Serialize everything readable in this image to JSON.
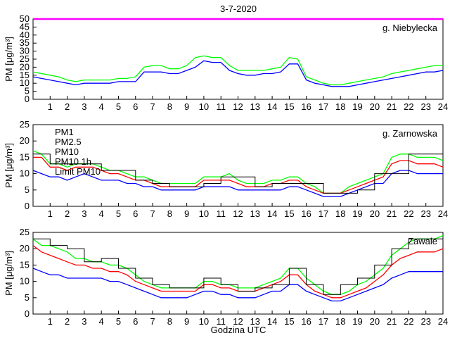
{
  "chart_data": {
    "title": "3-7-2020",
    "xlabel": "Godzina UTC",
    "ylabel": "PM [μg/m³]",
    "xlim": [
      0,
      24
    ],
    "xticks": [
      1,
      2,
      3,
      4,
      5,
      6,
      7,
      8,
      9,
      10,
      11,
      12,
      13,
      14,
      15,
      16,
      17,
      18,
      19,
      20,
      21,
      22,
      23,
      24
    ],
    "legend": [
      {
        "label": "PM1",
        "color": "#0000ff"
      },
      {
        "label": "PM2.5",
        "color": "#ff0000"
      },
      {
        "label": "PM10",
        "color": "#00ff00"
      },
      {
        "label": "PM10 1h",
        "color": "#000000"
      },
      {
        "label": "Limit PM10",
        "color": "#ff00ff"
      }
    ],
    "panels": [
      {
        "station": "g. Niebylecka",
        "type": "line",
        "ylim": [
          0,
          50
        ],
        "yticks": [
          0,
          5,
          10,
          15,
          20,
          25,
          30,
          35,
          40,
          45,
          50
        ],
        "limit_pm10": 50,
        "hours": [
          0,
          0.5,
          1,
          1.5,
          2,
          2.5,
          3,
          3.5,
          4,
          4.5,
          5,
          5.5,
          6,
          6.5,
          7,
          7.5,
          8,
          8.5,
          9,
          9.5,
          10,
          10.5,
          11,
          11.5,
          12,
          12.5,
          13,
          13.5,
          14,
          14.5,
          15,
          15.5,
          16,
          16.5,
          17,
          17.5,
          18,
          18.5,
          19,
          19.5,
          20,
          20.5,
          21,
          21.5,
          22,
          22.5,
          23,
          23.5,
          24
        ],
        "series": [
          {
            "name": "PM1",
            "values": [
              14,
              13,
              12,
              11,
              10,
              9,
              10,
              10,
              10,
              10,
              11,
              11,
              11,
              17,
              17,
              17,
              16,
              16,
              18,
              20,
              24,
              23,
              23,
              18,
              16,
              15,
              15,
              16,
              16,
              17,
              22,
              22,
              12,
              10,
              9,
              8,
              8,
              8,
              9,
              10,
              11,
              12,
              13,
              14,
              15,
              16,
              17,
              17,
              18
            ]
          },
          {
            "name": "PM10",
            "values": [
              17,
              16,
              15,
              14,
              12,
              11,
              12,
              12,
              12,
              12,
              13,
              13,
              14,
              20,
              21,
              21,
              19,
              19,
              21,
              26,
              27,
              26,
              26,
              21,
              18,
              18,
              18,
              18,
              19,
              20,
              26,
              25,
              14,
              12,
              10,
              9,
              9,
              10,
              11,
              12,
              13,
              14,
              16,
              17,
              18,
              19,
              20,
              21,
              21
            ]
          }
        ]
      },
      {
        "station": "g. Zarnowska",
        "type": "line",
        "ylim": [
          0,
          25
        ],
        "yticks": [
          0,
          5,
          10,
          15,
          20,
          25
        ],
        "hours": [
          0,
          0.5,
          1,
          1.5,
          2,
          2.5,
          3,
          3.5,
          4,
          4.5,
          5,
          5.5,
          6,
          6.5,
          7,
          7.5,
          8,
          8.5,
          9,
          9.5,
          10,
          10.5,
          11,
          11.5,
          12,
          12.5,
          13,
          13.5,
          14,
          14.5,
          15,
          15.5,
          16,
          16.5,
          17,
          17.5,
          18,
          18.5,
          19,
          19.5,
          20,
          20.5,
          21,
          21.5,
          22,
          22.5,
          23,
          23.5,
          24
        ],
        "series": [
          {
            "name": "PM1",
            "values": [
              11,
              10,
              9,
              9,
              8,
              9,
              10,
              9,
              8,
              8,
              8,
              7,
              7,
              6,
              6,
              5,
              5,
              5,
              5,
              5,
              6,
              6,
              6,
              6,
              5,
              5,
              5,
              5,
              5,
              5,
              6,
              6,
              5,
              4,
              3,
              3,
              3,
              4,
              5,
              6,
              7,
              7,
              10,
              11,
              11,
              10,
              10,
              10,
              10
            ]
          },
          {
            "name": "PM2.5",
            "values": [
              15,
              15,
              12,
              12,
              11,
              12,
              12,
              12,
              11,
              10,
              10,
              9,
              8,
              8,
              7,
              6,
              6,
              6,
              6,
              6,
              8,
              8,
              8,
              8,
              7,
              6,
              6,
              6,
              7,
              7,
              8,
              8,
              6,
              5,
              4,
              4,
              4,
              5,
              6,
              7,
              8,
              9,
              13,
              14,
              14,
              13,
              13,
              13,
              12
            ]
          },
          {
            "name": "PM10",
            "values": [
              17,
              16,
              13,
              13,
              12,
              13,
              13,
              13,
              12,
              11,
              11,
              10,
              9,
              9,
              8,
              7,
              7,
              7,
              7,
              7,
              9,
              9,
              9,
              10,
              8,
              7,
              7,
              7,
              8,
              8,
              9,
              9,
              7,
              6,
              4,
              4,
              4,
              6,
              7,
              8,
              9,
              10,
              15,
              16,
              16,
              15,
              15,
              15,
              14
            ]
          }
        ],
        "hourly_pm10": [
          16,
          13,
          13,
          13,
          11,
          11,
          8,
          7,
          6,
          6,
          7,
          9,
          9,
          6,
          7,
          7,
          7,
          4,
          4,
          5,
          10,
          10,
          16,
          16
        ]
      },
      {
        "station": "Zawale",
        "type": "line",
        "ylim": [
          0,
          25
        ],
        "yticks": [
          0,
          5,
          10,
          15,
          20,
          25
        ],
        "hours": [
          0,
          0.5,
          1,
          1.5,
          2,
          2.5,
          3,
          3.5,
          4,
          4.5,
          5,
          5.5,
          6,
          6.5,
          7,
          7.5,
          8,
          8.5,
          9,
          9.5,
          10,
          10.5,
          11,
          11.5,
          12,
          12.5,
          13,
          13.5,
          14,
          14.5,
          15,
          15.5,
          16,
          16.5,
          17,
          17.5,
          18,
          18.5,
          19,
          19.5,
          20,
          20.5,
          21,
          21.5,
          22,
          22.5,
          23,
          23.5,
          24
        ],
        "series": [
          {
            "name": "PM1",
            "values": [
              14,
              13,
              12,
              12,
              11,
              11,
              11,
              11,
              11,
              10,
              10,
              9,
              8,
              7,
              6,
              5,
              5,
              5,
              5,
              6,
              7,
              7,
              6,
              6,
              5,
              5,
              5,
              6,
              7,
              7,
              9,
              9,
              7,
              6,
              5,
              4,
              4,
              5,
              6,
              7,
              8,
              9,
              11,
              12,
              13,
              13,
              13,
              13,
              13
            ]
          },
          {
            "name": "PM2.5",
            "values": [
              21,
              19,
              18,
              17,
              16,
              15,
              15,
              14,
              14,
              13,
              13,
              12,
              10,
              9,
              8,
              7,
              7,
              7,
              7,
              7,
              9,
              9,
              8,
              8,
              7,
              7,
              7,
              8,
              9,
              10,
              12,
              12,
              9,
              7,
              6,
              5,
              5,
              6,
              7,
              8,
              10,
              12,
              15,
              17,
              18,
              19,
              19,
              19,
              20
            ]
          },
          {
            "name": "PM10",
            "values": [
              23,
              21,
              21,
              20,
              19,
              17,
              17,
              16,
              16,
              15,
              15,
              14,
              12,
              10,
              9,
              8,
              8,
              8,
              8,
              8,
              10,
              10,
              9,
              9,
              8,
              8,
              8,
              9,
              10,
              11,
              14,
              14,
              11,
              9,
              7,
              6,
              6,
              7,
              9,
              10,
              12,
              14,
              18,
              20,
              22,
              23,
              23,
              23,
              24
            ]
          }
        ],
        "hourly_pm10": [
          23,
          21,
          20,
          16,
          17,
          14,
          11,
          9,
          8,
          8,
          11,
          9,
          7,
          8,
          9,
          14,
          9,
          6,
          9,
          11,
          15,
          20,
          23,
          23
        ]
      }
    ]
  }
}
